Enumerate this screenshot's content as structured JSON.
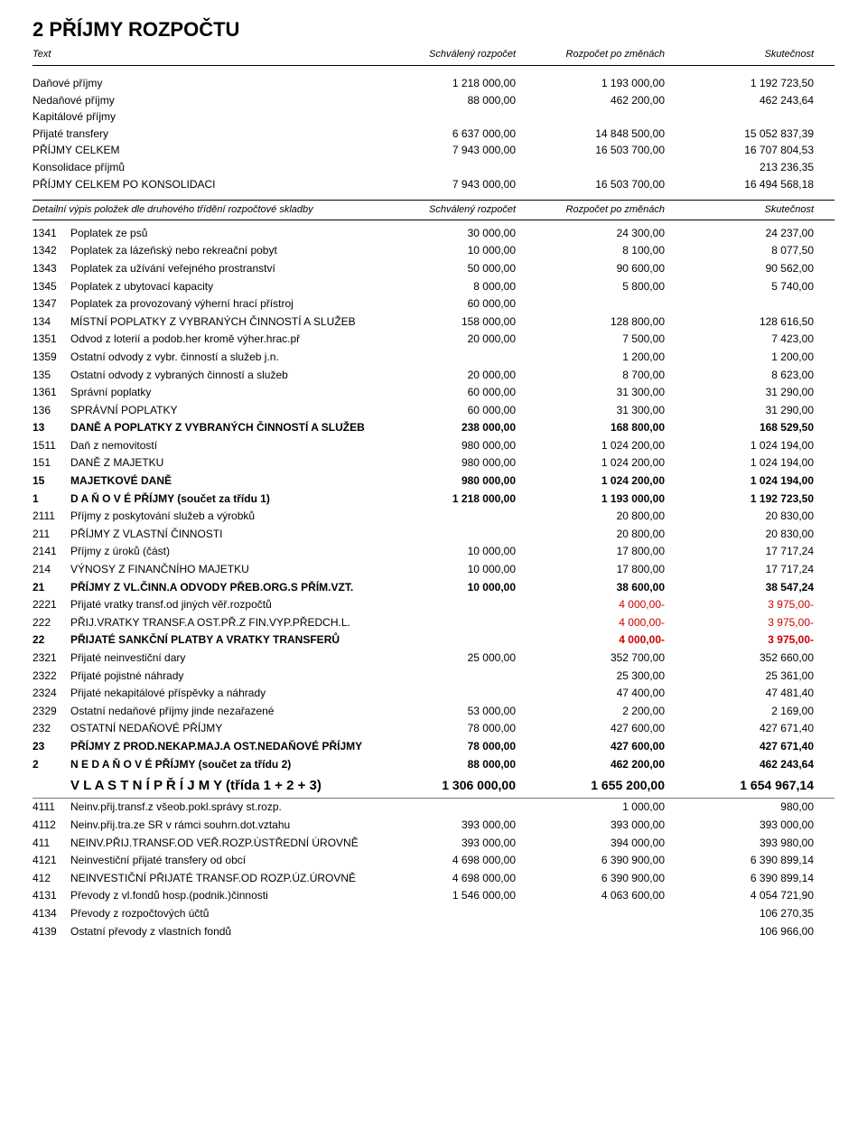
{
  "title": "2 PŘÍJMY ROZPOČTU",
  "header": {
    "text": "Text",
    "a": "Schválený rozpočet",
    "b": "Rozpočet po změnách",
    "c": "Skutečnost"
  },
  "summary": [
    {
      "label": "Daňové příjmy",
      "a": "1 218 000,00",
      "b": "1 193 000,00",
      "c": "1 192 723,50"
    },
    {
      "label": "Nedaňové příjmy",
      "a": "88 000,00",
      "b": "462 200,00",
      "c": "462 243,64"
    },
    {
      "label": "Kapitálové příjmy",
      "a": "",
      "b": "",
      "c": ""
    },
    {
      "label": "Přijaté transfery",
      "a": "6 637 000,00",
      "b": "14 848 500,00",
      "c": "15 052 837,39"
    },
    {
      "label": "PŘÍJMY CELKEM",
      "a": "7 943 000,00",
      "b": "16 503 700,00",
      "c": "16 707 804,53"
    },
    {
      "label": "Konsolidace příjmů",
      "a": "",
      "b": "",
      "c": "213 236,35"
    },
    {
      "label": "PŘÍJMY CELKEM PO KONSOLIDACI",
      "a": "7 943 000,00",
      "b": "16 503 700,00",
      "c": "16 494 568,18"
    }
  ],
  "subheader": {
    "text": "Detailní výpis položek dle druhového třídění rozpočtové skladby",
    "a": "Schválený rozpočet",
    "b": "Rozpočet po změnách",
    "c": "Skutečnost"
  },
  "rows": [
    {
      "code": "1341",
      "desc": "Poplatek ze psů",
      "a": "30 000,00",
      "b": "24 300,00",
      "c": "24 237,00"
    },
    {
      "code": "1342",
      "desc": "Poplatek za lázeňský nebo rekreační pobyt",
      "a": "10 000,00",
      "b": "8 100,00",
      "c": "8 077,50"
    },
    {
      "code": "1343",
      "desc": "Poplatek za užívání veřejného prostranství",
      "a": "50 000,00",
      "b": "90 600,00",
      "c": "90 562,00"
    },
    {
      "code": "1345",
      "desc": "Poplatek z ubytovací kapacity",
      "a": "8 000,00",
      "b": "5 800,00",
      "c": "5 740,00"
    },
    {
      "code": "1347",
      "desc": "Poplatek za provozovaný výherní hrací přístroj",
      "a": "60 000,00",
      "b": "",
      "c": ""
    },
    {
      "code": "134",
      "desc": "MÍSTNÍ POPLATKY Z VYBRANÝCH ČINNOSTÍ A SLUŽEB",
      "a": "158 000,00",
      "b": "128 800,00",
      "c": "128 616,50"
    },
    {
      "code": "1351",
      "desc": "Odvod z loterií a podob.her kromě výher.hrac.př",
      "a": "20 000,00",
      "b": "7 500,00",
      "c": "7 423,00"
    },
    {
      "code": "1359",
      "desc": "Ostatní odvody z vybr. činností a služeb j.n.",
      "a": "",
      "b": "1 200,00",
      "c": "1 200,00"
    },
    {
      "code": "135",
      "desc": "Ostatní odvody z vybraných činností a služeb",
      "a": "20 000,00",
      "b": "8 700,00",
      "c": "8 623,00"
    },
    {
      "code": "1361",
      "desc": "Správní poplatky",
      "a": "60 000,00",
      "b": "31 300,00",
      "c": "31 290,00"
    },
    {
      "code": "136",
      "desc": "SPRÁVNÍ POPLATKY",
      "a": "60 000,00",
      "b": "31 300,00",
      "c": "31 290,00"
    },
    {
      "code": "13",
      "desc": "DANĚ A POPLATKY Z VYBRANÝCH ČINNOSTÍ A SLUŽEB",
      "a": "238 000,00",
      "b": "168 800,00",
      "c": "168 529,50",
      "bold": true
    },
    {
      "code": "1511",
      "desc": "Daň z nemovitostí",
      "a": "980 000,00",
      "b": "1 024 200,00",
      "c": "1 024 194,00"
    },
    {
      "code": "151",
      "desc": "DANĚ Z MAJETKU",
      "a": "980 000,00",
      "b": "1 024 200,00",
      "c": "1 024 194,00"
    },
    {
      "code": "15",
      "desc": "MAJETKOVÉ DANĚ",
      "a": "980 000,00",
      "b": "1 024 200,00",
      "c": "1 024 194,00",
      "bold": true
    },
    {
      "code": "1",
      "desc": "D A Ň O V É   PŘÍJMY  (součet za třídu 1)",
      "a": "1 218 000,00",
      "b": "1 193 000,00",
      "c": "1 192 723,50",
      "bold": true
    },
    {
      "code": "2111",
      "desc": "Příjmy z poskytování služeb a výrobků",
      "a": "",
      "b": "20 800,00",
      "c": "20 830,00"
    },
    {
      "code": "211",
      "desc": "PŘÍJMY Z VLASTNÍ ČINNOSTI",
      "a": "",
      "b": "20 800,00",
      "c": "20 830,00"
    },
    {
      "code": "2141",
      "desc": "Příjmy z úroků (část)",
      "a": "10 000,00",
      "b": "17 800,00",
      "c": "17 717,24"
    },
    {
      "code": "214",
      "desc": "VÝNOSY Z FINANČNÍHO MAJETKU",
      "a": "10 000,00",
      "b": "17 800,00",
      "c": "17 717,24"
    },
    {
      "code": "21",
      "desc": "PŘÍJMY Z VL.ČINN.A ODVODY PŘEB.ORG.S PŘÍM.VZT.",
      "a": "10 000,00",
      "b": "38 600,00",
      "c": "38 547,24",
      "bold": true
    },
    {
      "code": "2221",
      "desc": "Přijaté vratky transf.od jiných věř.rozpočtů",
      "a": "",
      "b": "4 000,00-",
      "c": "3 975,00-",
      "neg": true
    },
    {
      "code": "222",
      "desc": "PŘIJ.VRATKY TRANSF.A OST.PŘ.Z FIN.VYP.PŘEDCH.L.",
      "a": "",
      "b": "4 000,00-",
      "c": "3 975,00-",
      "neg": true
    },
    {
      "code": "22",
      "desc": "PŘIJATÉ SANKČNÍ PLATBY A VRATKY TRANSFERŮ",
      "a": "",
      "b": "4 000,00-",
      "c": "3 975,00-",
      "bold": true,
      "neg": true
    },
    {
      "code": "2321",
      "desc": "Přijaté neinvestiční dary",
      "a": "25 000,00",
      "b": "352 700,00",
      "c": "352 660,00"
    },
    {
      "code": "2322",
      "desc": "Přijaté pojistné náhrady",
      "a": "",
      "b": "25 300,00",
      "c": "25 361,00"
    },
    {
      "code": "2324",
      "desc": "Přijaté nekapitálové příspěvky a náhrady",
      "a": "",
      "b": "47 400,00",
      "c": "47 481,40"
    },
    {
      "code": "2329",
      "desc": "Ostatní nedaňové příjmy jinde nezařazené",
      "a": "53 000,00",
      "b": "2 200,00",
      "c": "2 169,00"
    },
    {
      "code": "232",
      "desc": "OSTATNÍ NEDAŇOVÉ PŘÍJMY",
      "a": "78 000,00",
      "b": "427 600,00",
      "c": "427 671,40"
    },
    {
      "code": "23",
      "desc": "PŘÍJMY Z PROD.NEKAP.MAJ.A OST.NEDAŇOVÉ PŘÍJMY",
      "a": "78 000,00",
      "b": "427 600,00",
      "c": "427 671,40",
      "bold": true
    },
    {
      "code": "2",
      "desc": "N E D A Ň O V É   PŘÍJMY (součet za třídu 2)",
      "a": "88 000,00",
      "b": "462 200,00",
      "c": "462 243,64",
      "bold": true
    },
    {
      "code": "",
      "desc": "V L A S T N Í   P Ř Í J M Y (třída 1 + 2 + 3)",
      "a": "1 306 000,00",
      "b": "1 655 200,00",
      "c": "1 654 967,14",
      "big": true
    },
    {
      "code": "4111",
      "desc": "Neinv.přij.transf.z všeob.pokl.správy st.rozp.",
      "a": "",
      "b": "1 000,00",
      "c": "980,00"
    },
    {
      "code": "4112",
      "desc": "Neinv.přij.tra.ze SR v rámci souhrn.dot.vztahu",
      "a": "393 000,00",
      "b": "393 000,00",
      "c": "393 000,00"
    },
    {
      "code": "411",
      "desc": "NEINV.PŘIJ.TRANSF.OD VEŘ.ROZP.ÚSTŘEDNÍ ÚROVNĚ",
      "a": "393 000,00",
      "b": "394 000,00",
      "c": "393 980,00"
    },
    {
      "code": "4121",
      "desc": "Neinvestiční přijaté transfery od obcí",
      "a": "4 698 000,00",
      "b": "6 390 900,00",
      "c": "6 390 899,14"
    },
    {
      "code": "412",
      "desc": "NEINVESTIČNÍ PŘIJATÉ TRANSF.OD ROZP.ÚZ.ÚROVNĚ",
      "a": "4 698 000,00",
      "b": "6 390 900,00",
      "c": "6 390 899,14"
    },
    {
      "code": "4131",
      "desc": "Převody z vl.fondů hosp.(podnik.)činnosti",
      "a": "1 546 000,00",
      "b": "4 063 600,00",
      "c": "4 054 721,90"
    },
    {
      "code": "4134",
      "desc": "Převody z rozpočtových účtů",
      "a": "",
      "b": "",
      "c": "106 270,35"
    },
    {
      "code": "4139",
      "desc": "Ostatní převody z vlastních fondů",
      "a": "",
      "b": "",
      "c": "106 966,00"
    }
  ]
}
